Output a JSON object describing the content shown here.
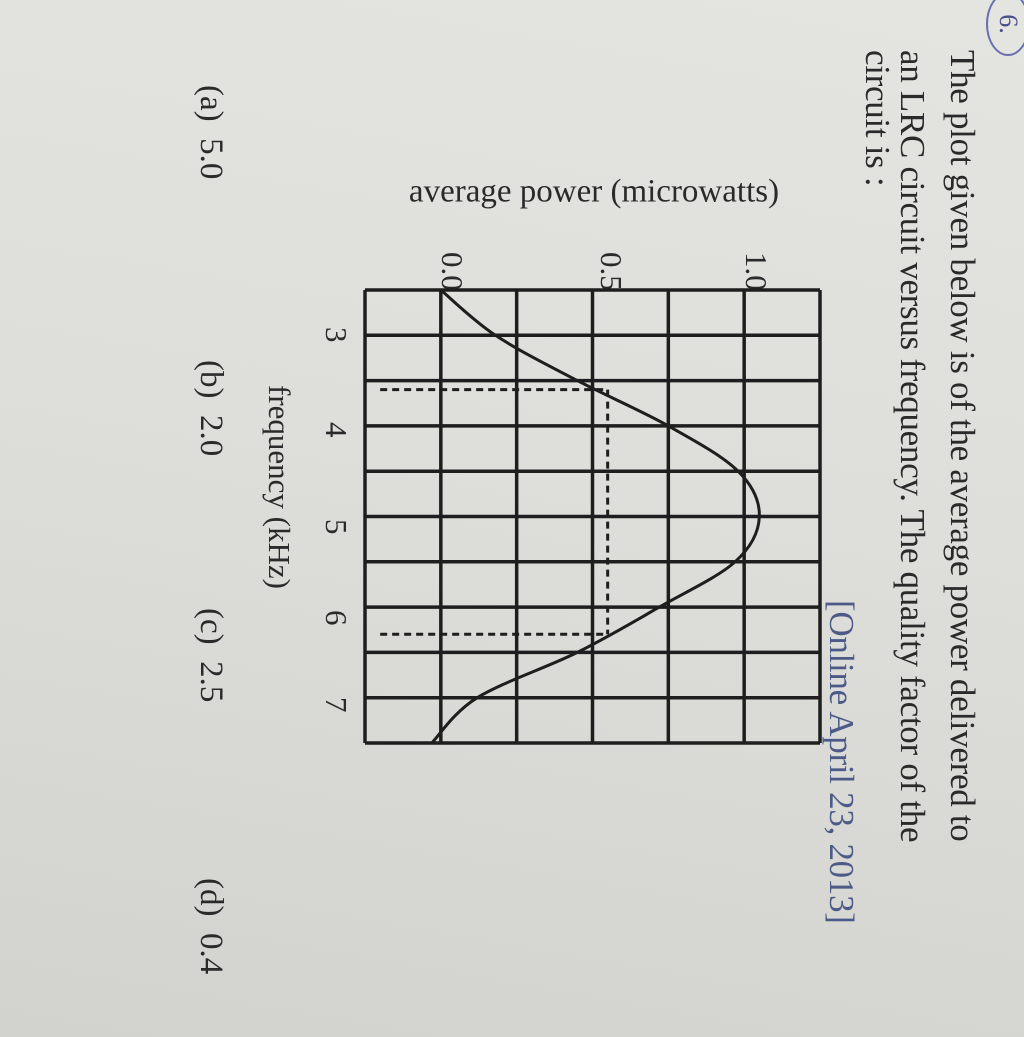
{
  "question": {
    "number": "6.",
    "lines": [
      "The plot given below is of the average power delivered to",
      "an LRC circuit versus frequency. The quality factor of the",
      "circuit is :"
    ],
    "source": "[Online April 23, 2013]"
  },
  "options": [
    {
      "label": "(a)",
      "value": "5.0"
    },
    {
      "label": "(b)",
      "value": "2.0"
    },
    {
      "label": "(c)",
      "value": "2.5"
    },
    {
      "label": "(d)",
      "value": "0.4"
    }
  ],
  "chart_data": {
    "type": "line",
    "title": "",
    "xlabel": "frequency (kHz)",
    "ylabel": "average power (microwatts)",
    "xlim": [
      2.5,
      7.5
    ],
    "ylim": [
      -0.25,
      1.25
    ],
    "x_ticks": [
      "3",
      "4",
      "5",
      "6",
      "7"
    ],
    "y_ticks": [
      "0.0",
      "0.5",
      "1.0"
    ],
    "grid": true,
    "x": [
      2.5,
      3.0,
      3.5,
      4.0,
      4.5,
      5.0,
      5.5,
      6.0,
      6.5,
      7.0,
      7.5
    ],
    "y": [
      0.0,
      0.18,
      0.45,
      0.75,
      0.98,
      1.05,
      0.97,
      0.72,
      0.45,
      0.12,
      -0.03
    ],
    "annotations": {
      "dashed_half_power_frequencies": [
        3.6,
        6.3
      ],
      "dashed_power_level": 0.55
    }
  }
}
